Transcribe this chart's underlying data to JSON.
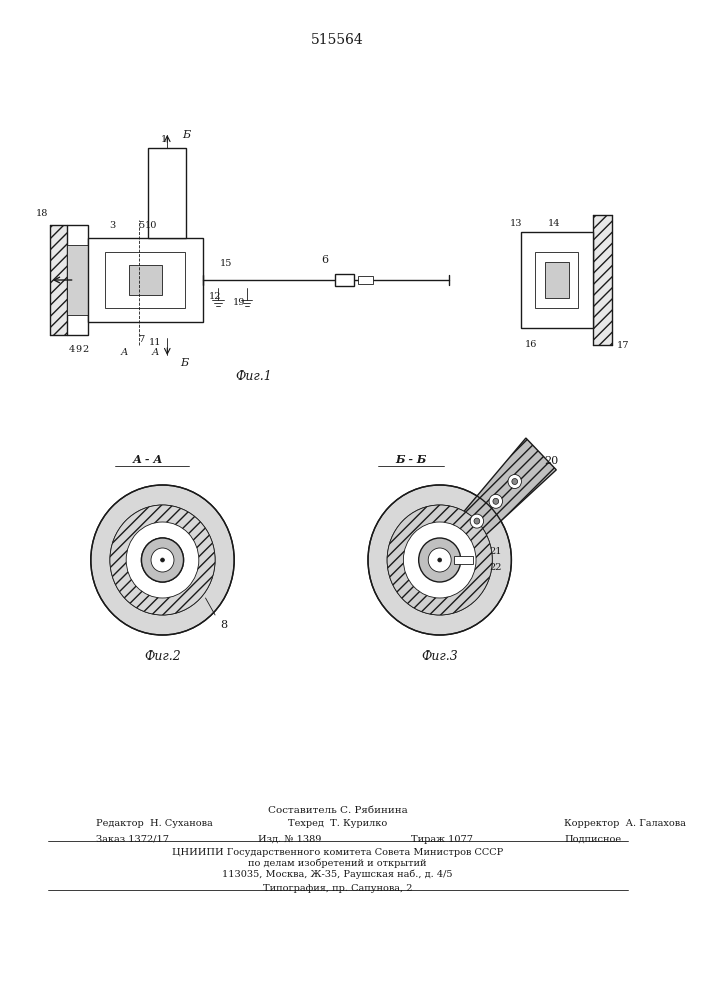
{
  "patent_number": "515564",
  "background_color": "#ffffff",
  "line_color": "#1a1a1a",
  "hatch_color": "#333333",
  "fig1_label": "Фиг.1",
  "fig2_label": "Фиг.2",
  "fig3_label": "Фиг.3",
  "section_aa": "А - А",
  "section_bb": "Б - Б",
  "footer_composer": "Составитель С. Рябинина",
  "footer_editor": "Редактор  Н. Суханова",
  "footer_tech": "Техред  Т. Курилко",
  "footer_corrector": "Корректор  А. Галахова",
  "footer_order": "Заказ 1372/17",
  "footer_issue": "Изд. № 1389",
  "footer_copies": "Тираж 1077",
  "footer_signed": "Подписное",
  "footer_org": "ЦНИИПИ Государственного комитета Совета Министров СССР",
  "footer_org2": "по делам изобретений и открытий",
  "footer_addr": "113035, Москва, Ж-35, Раушская наб., д. 4/5",
  "footer_print": "Типография, пр. Сапунова, 2"
}
